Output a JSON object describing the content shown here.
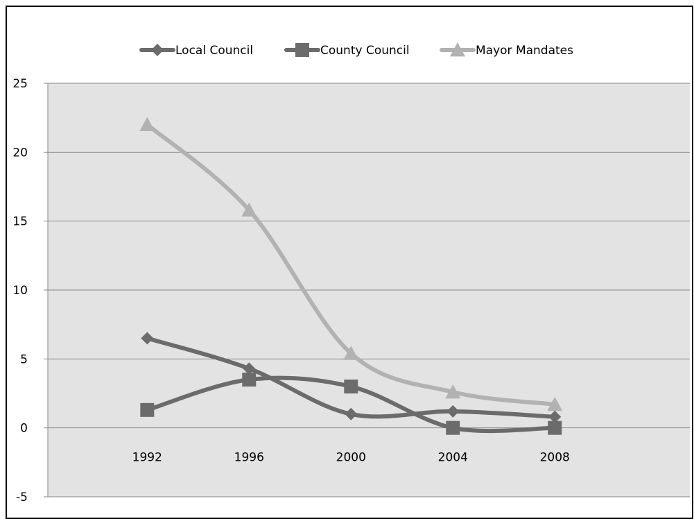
{
  "chart_data": {
    "type": "line",
    "title": "",
    "xlabel": "",
    "ylabel": "",
    "ylim": [
      -5,
      25
    ],
    "y_ticks": [
      "25",
      "20",
      "15",
      "10",
      "5",
      "0",
      "-5"
    ],
    "x_tick_labels": [
      "1992",
      "1996",
      "2000",
      "2004",
      "2008"
    ],
    "x_tick_values": [
      1992,
      1996,
      2000,
      2004,
      2008
    ],
    "xlim": [
      1988.1,
      2013.3
    ],
    "legend_position": "top",
    "grid": true,
    "smooth": true,
    "series": [
      {
        "name": "Local Council",
        "marker": "diamond",
        "color": "#6b6b6b",
        "points": [
          [
            1992,
            6.5
          ],
          [
            1996,
            4.3
          ],
          [
            2000,
            1.0
          ],
          [
            2004,
            1.2
          ],
          [
            2008,
            0.8
          ]
        ]
      },
      {
        "name": "County Council",
        "marker": "square",
        "color": "#6b6b6b",
        "points": [
          [
            1992,
            1.3
          ],
          [
            1996,
            3.5
          ],
          [
            2000,
            3.0
          ],
          [
            2004,
            0.0
          ],
          [
            2008,
            0.0
          ]
        ]
      },
      {
        "name": "Mayor Mandates",
        "marker": "triangle",
        "color": "#b2b2b2",
        "points": [
          [
            1992,
            22.0
          ],
          [
            1996,
            15.8
          ],
          [
            2000,
            5.4
          ],
          [
            2004,
            2.6
          ],
          [
            2008,
            1.7
          ]
        ]
      }
    ]
  }
}
